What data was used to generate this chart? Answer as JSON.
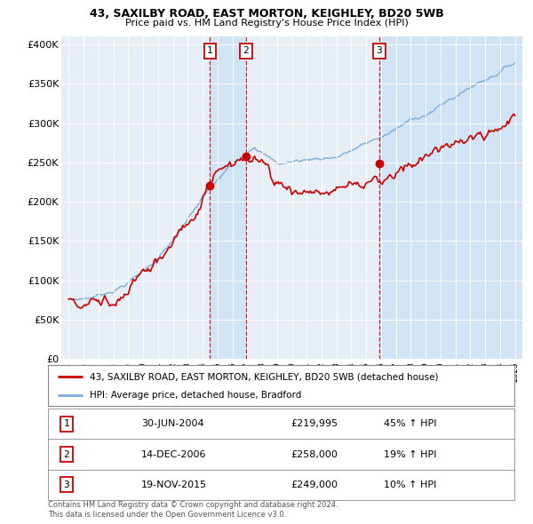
{
  "title1": "43, SAXILBY ROAD, EAST MORTON, KEIGHLEY, BD20 5WB",
  "title2": "Price paid vs. HM Land Registry's House Price Index (HPI)",
  "ylabel_ticks": [
    "£0",
    "£50K",
    "£100K",
    "£150K",
    "£200K",
    "£250K",
    "£300K",
    "£350K",
    "£400K"
  ],
  "ytick_values": [
    0,
    50000,
    100000,
    150000,
    200000,
    250000,
    300000,
    350000,
    400000
  ],
  "ylim": [
    0,
    410000
  ],
  "xlim_start": 1994.5,
  "xlim_end": 2025.5,
  "sale_color": "#cc0000",
  "hpi_color": "#7aacdc",
  "shade_color": "#d0e4f5",
  "transactions": [
    {
      "num": 1,
      "date_x": 2004.5,
      "price": 219995,
      "label": "30-JUN-2004",
      "price_str": "£219,995",
      "pct": "45% ↑ HPI"
    },
    {
      "num": 2,
      "date_x": 2006.92,
      "price": 258000,
      "label": "14-DEC-2006",
      "price_str": "£258,000",
      "pct": "19% ↑ HPI"
    },
    {
      "num": 3,
      "date_x": 2015.88,
      "price": 249000,
      "label": "19-NOV-2015",
      "price_str": "£249,000",
      "pct": "10% ↑ HPI"
    }
  ],
  "legend_label1": "43, SAXILBY ROAD, EAST MORTON, KEIGHLEY, BD20 5WB (detached house)",
  "legend_label2": "HPI: Average price, detached house, Bradford",
  "footer1": "Contains HM Land Registry data © Crown copyright and database right 2024.",
  "footer2": "This data is licensed under the Open Government Licence v3.0.",
  "background_color": "#e8eef5"
}
